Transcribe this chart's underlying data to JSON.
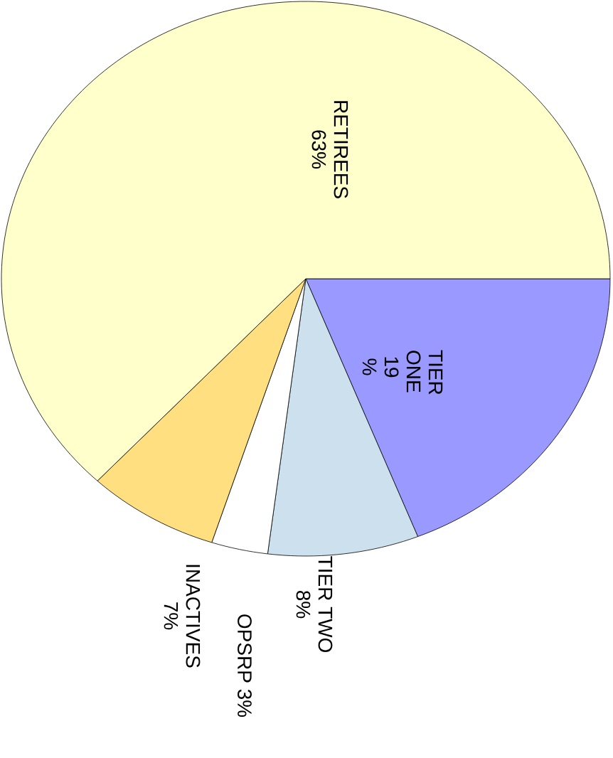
{
  "chart_data": {
    "type": "pie",
    "categories": [
      "RETIREES",
      "TIER ONE",
      "TIER TWO",
      "OPSRP",
      "INACTIVES"
    ],
    "values": [
      63,
      19,
      8,
      3,
      7
    ],
    "value_labels": [
      "63%",
      "19 %",
      "8%",
      "3%",
      "7%"
    ],
    "colors": [
      "#ffffcc",
      "#9999ff",
      "#cce0ee",
      "#ffffff",
      "#ffdf80"
    ]
  }
}
